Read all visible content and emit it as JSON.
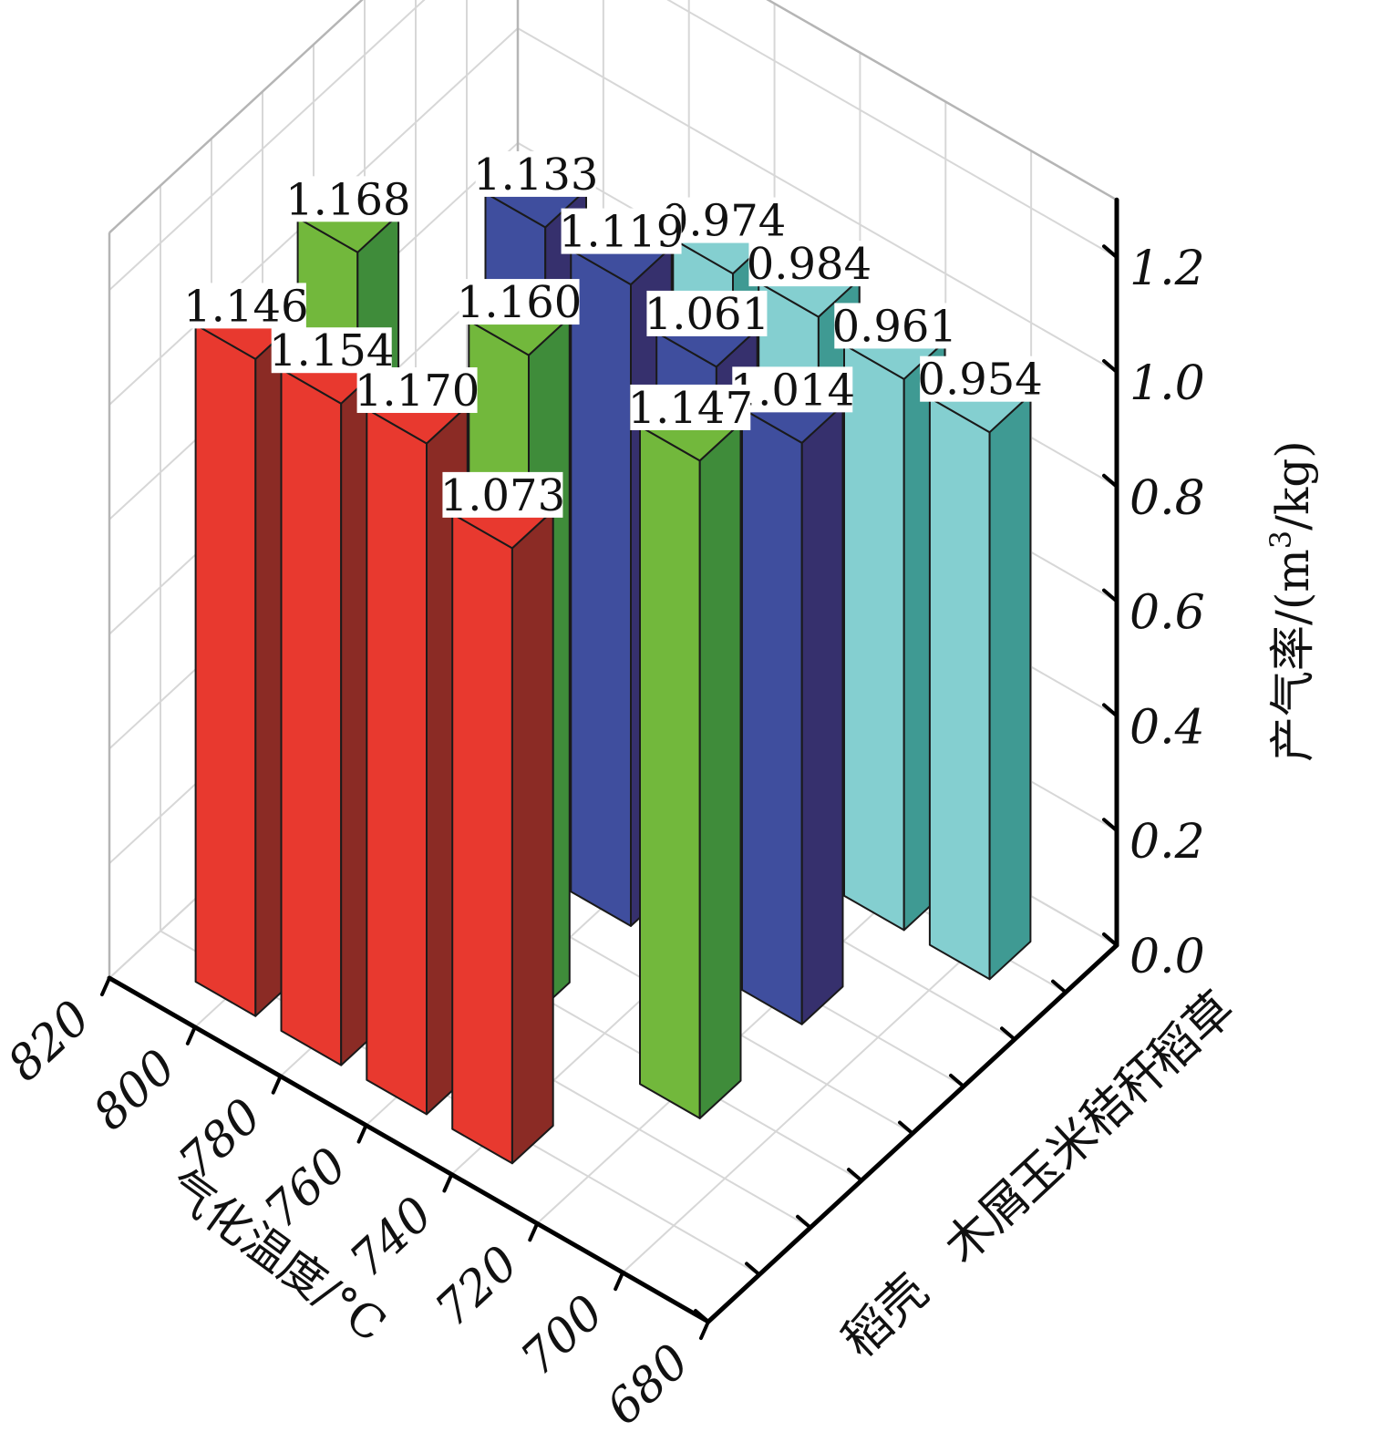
{
  "chart_data": {
    "type": "bar",
    "subtype": "3d-bar",
    "x_axis": {
      "label": "气化温度/°C",
      "ticks": [
        "820",
        "800",
        "780",
        "760",
        "740",
        "720",
        "700",
        "680"
      ]
    },
    "y_axis": {
      "categories": [
        "稻壳",
        "木屑",
        "玉米秸秆",
        "稻草"
      ]
    },
    "z_axis": {
      "label_prefix": "产气率/(m",
      "label_sup": "3",
      "label_suffix": "/kg)",
      "ticks": [
        "0.0",
        "0.2",
        "0.4",
        "0.6",
        "0.8",
        "1.0",
        "1.2"
      ],
      "range": [
        0,
        1.3
      ]
    },
    "grid": true,
    "series": [
      {
        "name": "稻壳",
        "color": "#e8392f",
        "side_color": "#8b2b25",
        "points": [
          {
            "x": 800,
            "value": 1.146,
            "label": "1.146"
          },
          {
            "x": 780,
            "value": 1.154,
            "label": "1.154"
          },
          {
            "x": 760,
            "value": 1.17,
            "label": "1.170"
          },
          {
            "x": 740,
            "value": 1.073,
            "label": "1.073"
          }
        ]
      },
      {
        "name": "木屑",
        "color": "#72b83c",
        "side_color": "#3f8c3a",
        "points": [
          {
            "x": 800,
            "value": 1.168,
            "label": "1.168"
          },
          {
            "x": 760,
            "value": 1.16,
            "label": "1.160"
          },
          {
            "x": 720,
            "value": 1.147,
            "label": "1.147"
          }
        ]
      },
      {
        "name": "玉米秸秆",
        "color": "#3f4e9e",
        "side_color": "#36306d",
        "points": [
          {
            "x": 780,
            "value": 1.133,
            "label": "1.133"
          },
          {
            "x": 760,
            "value": 1.119,
            "label": "1.119"
          },
          {
            "x": 740,
            "value": 1.061,
            "label": "1.061"
          },
          {
            "x": 720,
            "value": 1.014,
            "label": "1.014"
          }
        ]
      },
      {
        "name": "稻草",
        "color": "#84cfd0",
        "side_color": "#3f9a93",
        "points": [
          {
            "x": 760,
            "value": 0.974,
            "label": "0.974"
          },
          {
            "x": 740,
            "value": 0.984,
            "label": "0.984"
          },
          {
            "x": 720,
            "value": 0.961,
            "label": "0.961"
          },
          {
            "x": 700,
            "value": 0.954,
            "label": "0.954"
          }
        ]
      }
    ]
  }
}
